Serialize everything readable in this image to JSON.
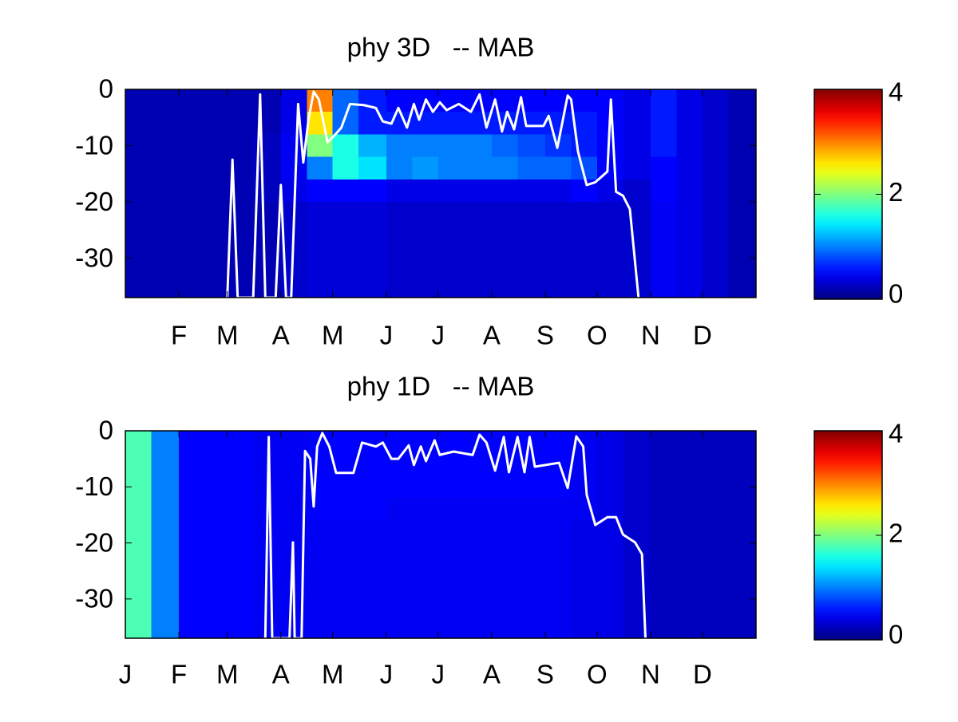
{
  "chart_data": [
    {
      "type": "heatmap",
      "title": "phy 3D   -- MAB",
      "colormap": "jet",
      "x_bins": [
        1,
        16,
        32,
        47,
        60,
        75,
        91,
        106,
        121,
        136,
        152,
        167,
        182,
        197,
        213,
        228,
        244,
        259,
        274,
        289,
        305,
        320,
        335,
        350,
        366
      ],
      "y_bins": [
        0,
        -4,
        -8,
        -12,
        -16,
        -20,
        -25,
        -30,
        -37
      ],
      "values": [
        [
          0.2,
          0.2,
          0.2,
          0.2,
          0.2,
          0.2,
          0.4,
          3.0,
          0.9,
          0.6,
          0.5,
          0.5,
          0.5,
          0.5,
          0.5,
          0.5,
          0.5,
          0.5,
          0.5,
          0.4,
          0.6,
          0.4,
          0.3,
          0.2
        ],
        [
          0.2,
          0.2,
          0.2,
          0.2,
          0.2,
          0.2,
          0.4,
          2.6,
          0.9,
          0.6,
          0.6,
          0.6,
          0.6,
          0.6,
          0.6,
          0.6,
          0.6,
          0.6,
          0.5,
          0.4,
          0.6,
          0.4,
          0.3,
          0.2
        ],
        [
          0.2,
          0.2,
          0.2,
          0.2,
          0.2,
          0.25,
          0.45,
          2.0,
          1.6,
          1.2,
          1.0,
          1.0,
          1.0,
          1.0,
          0.9,
          0.8,
          0.7,
          0.6,
          0.5,
          0.4,
          0.6,
          0.4,
          0.3,
          0.2
        ],
        [
          0.2,
          0.2,
          0.2,
          0.2,
          0.2,
          0.25,
          0.45,
          1.0,
          1.6,
          1.4,
          1.0,
          1.1,
          1.0,
          1.0,
          1.0,
          0.9,
          0.9,
          0.8,
          0.5,
          0.4,
          0.5,
          0.4,
          0.3,
          0.2
        ],
        [
          0.2,
          0.2,
          0.2,
          0.2,
          0.2,
          0.25,
          0.4,
          0.5,
          0.5,
          0.5,
          0.4,
          0.4,
          0.4,
          0.4,
          0.4,
          0.4,
          0.4,
          0.5,
          0.4,
          0.3,
          0.5,
          0.4,
          0.3,
          0.2
        ],
        [
          0.2,
          0.2,
          0.2,
          0.2,
          0.2,
          0.2,
          0.3,
          0.35,
          0.35,
          0.35,
          0.3,
          0.3,
          0.3,
          0.3,
          0.3,
          0.3,
          0.3,
          0.3,
          0.3,
          0.3,
          0.45,
          0.4,
          0.3,
          0.2
        ],
        [
          0.2,
          0.2,
          0.2,
          0.2,
          0.2,
          0.2,
          0.3,
          0.35,
          0.35,
          0.35,
          0.3,
          0.3,
          0.3,
          0.3,
          0.3,
          0.3,
          0.3,
          0.3,
          0.3,
          0.3,
          0.45,
          0.4,
          0.3,
          0.2
        ],
        [
          0.2,
          0.2,
          0.2,
          0.2,
          0.2,
          0.2,
          0.3,
          0.35,
          0.35,
          0.35,
          0.3,
          0.3,
          0.3,
          0.3,
          0.3,
          0.3,
          0.3,
          0.3,
          0.3,
          0.3,
          0.45,
          0.4,
          0.3,
          0.2
        ]
      ],
      "line": {
        "color": "#ffffff",
        "x": [
          60,
          63,
          66,
          75,
          79,
          82,
          88,
          91,
          94,
          97,
          101,
          104,
          107,
          110,
          113,
          118,
          122,
          126,
          131,
          139,
          146,
          150,
          155,
          159,
          164,
          168,
          171,
          175,
          179,
          183,
          187,
          194,
          201,
          206,
          210,
          215,
          219,
          222,
          226,
          230,
          233,
          243,
          246,
          251,
          257,
          259,
          263,
          268,
          273,
          280,
          282,
          285,
          289,
          293,
          298
        ],
        "y": [
          -37,
          -12.5,
          -37,
          -37,
          -0.9,
          -37,
          -37,
          -17,
          -37,
          -37,
          -2.6,
          -13,
          -5.4,
          -0.4,
          -1.8,
          -9.4,
          -8.2,
          -6.8,
          -2.6,
          -2.8,
          -3.3,
          -5.7,
          -6.1,
          -3.3,
          -6.8,
          -2.6,
          -5.4,
          -1.8,
          -4.0,
          -2.3,
          -3.7,
          -2.6,
          -4.0,
          -0.9,
          -6.8,
          -1.8,
          -7.5,
          -4.0,
          -7.1,
          -1.4,
          -6.5,
          -6.5,
          -4.7,
          -10.4,
          -1.1,
          -1.8,
          -11.1,
          -17.0,
          -16.5,
          -14.6,
          -1.8,
          -18.2,
          -18.9,
          -21.3,
          -37
        ]
      },
      "xlim": [
        1,
        366
      ],
      "ylim": [
        -37,
        0
      ],
      "yticks": [
        0,
        -10,
        -20,
        -30
      ],
      "xticks": [
        {
          "value": 32,
          "label": "F"
        },
        {
          "value": 60,
          "label": "M"
        },
        {
          "value": 91,
          "label": "A"
        },
        {
          "value": 121,
          "label": "M"
        },
        {
          "value": 152,
          "label": "J"
        },
        {
          "value": 182,
          "label": "J"
        },
        {
          "value": 213,
          "label": "A"
        },
        {
          "value": 244,
          "label": "S"
        },
        {
          "value": 274,
          "label": "O"
        },
        {
          "value": 305,
          "label": "N"
        },
        {
          "value": 335,
          "label": "D"
        }
      ],
      "clim": [
        0,
        4
      ],
      "cticks": [
        0,
        2,
        4
      ]
    },
    {
      "type": "heatmap",
      "title": "phy 1D   -- MAB",
      "colormap": "jet",
      "x_bins": [
        1,
        16,
        32,
        47,
        60,
        75,
        91,
        106,
        121,
        136,
        152,
        167,
        182,
        197,
        213,
        228,
        244,
        259,
        274,
        289,
        305,
        320,
        335,
        350,
        366
      ],
      "y_bins": [
        0,
        -4,
        -8,
        -12,
        -16,
        -20,
        -25,
        -30,
        -37
      ],
      "values": [
        [
          1.8,
          1.0,
          0.5,
          0.5,
          0.5,
          0.45,
          0.45,
          0.5,
          0.5,
          0.5,
          0.5,
          0.5,
          0.5,
          0.5,
          0.5,
          0.5,
          0.5,
          0.45,
          0.4,
          0.3,
          0.25,
          0.25,
          0.25,
          0.25
        ],
        [
          1.8,
          1.0,
          0.5,
          0.5,
          0.5,
          0.45,
          0.45,
          0.5,
          0.5,
          0.5,
          0.5,
          0.5,
          0.5,
          0.5,
          0.5,
          0.5,
          0.5,
          0.45,
          0.4,
          0.3,
          0.25,
          0.25,
          0.25,
          0.25
        ],
        [
          1.8,
          1.0,
          0.5,
          0.5,
          0.5,
          0.45,
          0.45,
          0.5,
          0.5,
          0.5,
          0.5,
          0.5,
          0.5,
          0.5,
          0.5,
          0.5,
          0.5,
          0.45,
          0.4,
          0.3,
          0.25,
          0.25,
          0.25,
          0.25
        ],
        [
          1.8,
          1.0,
          0.5,
          0.5,
          0.5,
          0.45,
          0.45,
          0.5,
          0.5,
          0.5,
          0.45,
          0.45,
          0.45,
          0.45,
          0.45,
          0.45,
          0.45,
          0.45,
          0.4,
          0.3,
          0.25,
          0.25,
          0.25,
          0.25
        ],
        [
          1.8,
          1.0,
          0.5,
          0.5,
          0.5,
          0.45,
          0.45,
          0.45,
          0.45,
          0.45,
          0.45,
          0.45,
          0.45,
          0.45,
          0.45,
          0.45,
          0.45,
          0.4,
          0.4,
          0.3,
          0.25,
          0.25,
          0.25,
          0.25
        ],
        [
          1.8,
          1.0,
          0.5,
          0.5,
          0.5,
          0.45,
          0.45,
          0.45,
          0.45,
          0.45,
          0.45,
          0.45,
          0.45,
          0.45,
          0.45,
          0.45,
          0.45,
          0.4,
          0.4,
          0.3,
          0.25,
          0.25,
          0.25,
          0.25
        ],
        [
          1.8,
          1.0,
          0.5,
          0.5,
          0.5,
          0.45,
          0.45,
          0.45,
          0.45,
          0.45,
          0.45,
          0.45,
          0.45,
          0.45,
          0.45,
          0.45,
          0.45,
          0.4,
          0.4,
          0.3,
          0.25,
          0.25,
          0.25,
          0.25
        ],
        [
          1.8,
          1.0,
          0.5,
          0.5,
          0.5,
          0.45,
          0.45,
          0.45,
          0.45,
          0.45,
          0.45,
          0.45,
          0.45,
          0.45,
          0.45,
          0.45,
          0.45,
          0.4,
          0.4,
          0.3,
          0.25,
          0.25,
          0.25,
          0.25
        ]
      ],
      "line": {
        "color": "#ffffff",
        "x": [
          82,
          84,
          86,
          96,
          98,
          99,
          103,
          105,
          108,
          110,
          112,
          115,
          119,
          123,
          133,
          138,
          146,
          150,
          155,
          159,
          165,
          168,
          172,
          175,
          180,
          183,
          191,
          202,
          206,
          210,
          215,
          220,
          223,
          228,
          232,
          235,
          238,
          252,
          257,
          262,
          266,
          268,
          273,
          280,
          285,
          289,
          296,
          300,
          302
        ],
        "y": [
          -37,
          -1.1,
          -37,
          -37,
          -19.9,
          -37,
          -37,
          -3.6,
          -5,
          -13.5,
          -2.8,
          -0.4,
          -2.8,
          -7.5,
          -7.5,
          -2.1,
          -2.8,
          -2.1,
          -5,
          -5,
          -2.6,
          -6.1,
          -2.8,
          -5.4,
          -1.7,
          -4.3,
          -3.7,
          -4.3,
          -0.7,
          -2.1,
          -7.1,
          -1.1,
          -7.4,
          -1.1,
          -7.4,
          -1.1,
          -6.4,
          -5.7,
          -10.2,
          -1.0,
          -2.8,
          -11.4,
          -16.8,
          -15.4,
          -15.4,
          -18.5,
          -19.9,
          -22,
          -37
        ]
      },
      "xlim": [
        1,
        366
      ],
      "ylim": [
        -37,
        0
      ],
      "yticks": [
        0,
        -10,
        -20,
        -30
      ],
      "xticks": [
        {
          "value": 1,
          "label": "J"
        },
        {
          "value": 32,
          "label": "F"
        },
        {
          "value": 60,
          "label": "M"
        },
        {
          "value": 91,
          "label": "A"
        },
        {
          "value": 121,
          "label": "M"
        },
        {
          "value": 152,
          "label": "J"
        },
        {
          "value": 182,
          "label": "J"
        },
        {
          "value": 213,
          "label": "A"
        },
        {
          "value": 244,
          "label": "S"
        },
        {
          "value": 274,
          "label": "O"
        },
        {
          "value": 305,
          "label": "N"
        },
        {
          "value": 335,
          "label": "D"
        }
      ],
      "clim": [
        0,
        4
      ],
      "cticks": [
        0,
        2,
        4
      ]
    }
  ]
}
